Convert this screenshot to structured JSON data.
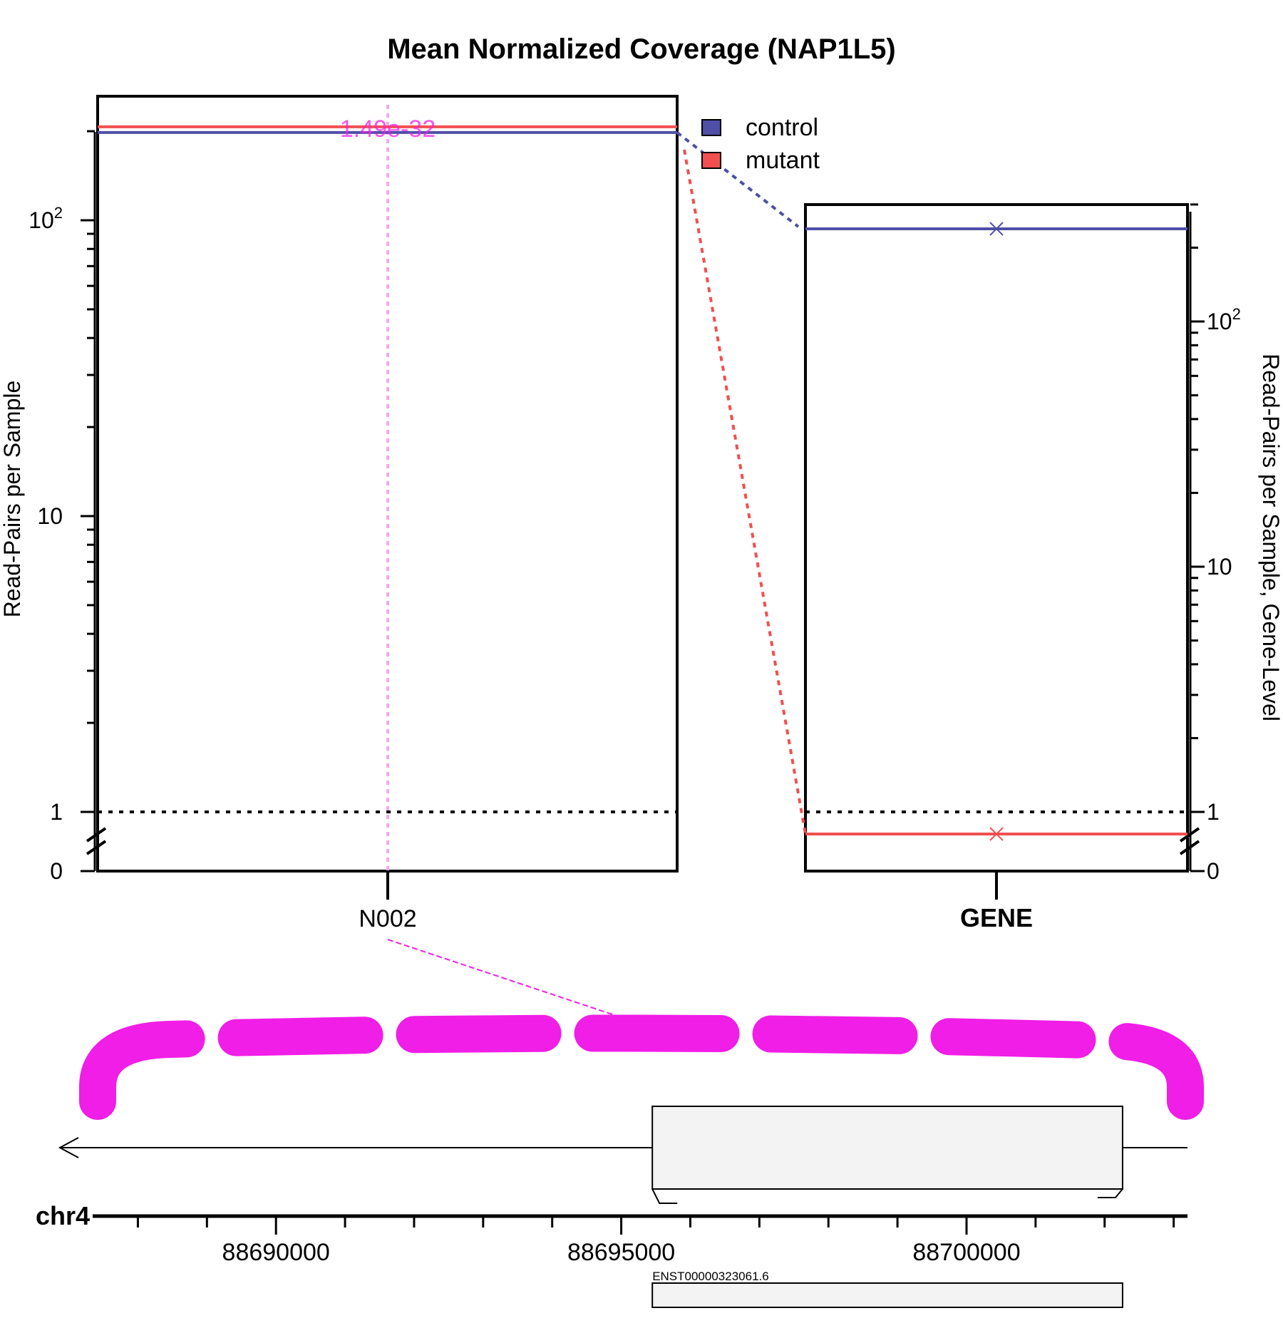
{
  "chart_data": {
    "title": "Mean Normalized Coverage (NAP1L5)",
    "type": "line",
    "colors": {
      "control": "#4f4fa7",
      "mutant": "#f24f4f",
      "highlight": "#f01ee6",
      "highlight_light": "#f5a8f1"
    },
    "legend": {
      "placement": "top-right",
      "entries": [
        {
          "name": "control"
        },
        {
          "name": "mutant"
        }
      ]
    },
    "left_panel": {
      "ylabel": "Read-Pairs per Sample",
      "yscale": "log",
      "ticks": [
        {
          "value": 0,
          "label": "0"
        },
        {
          "value": 1,
          "label": "1"
        },
        {
          "value": 10,
          "label": "10"
        },
        {
          "value": 100,
          "label": "10",
          "sup": "2"
        }
      ],
      "minor_ticks": [
        2,
        3,
        4,
        5,
        6,
        7,
        8,
        9,
        20,
        30,
        40,
        50,
        60,
        70,
        80,
        90,
        200
      ],
      "categories": [
        {
          "label": "N002"
        }
      ],
      "series": [
        {
          "name": "control",
          "value": 198
        },
        {
          "name": "mutant",
          "value": 207
        }
      ],
      "reference_line": 1,
      "annotation": {
        "text": "1.49e-32"
      }
    },
    "right_panel": {
      "ylabel": "Read-Pairs per Sample, Gene-Level",
      "yscale": "log",
      "ticks": [
        {
          "value": 0,
          "label": "0"
        },
        {
          "value": 1,
          "label": "1"
        },
        {
          "value": 10,
          "label": "10"
        },
        {
          "value": 100,
          "label": "10",
          "sup": "2"
        }
      ],
      "minor_ticks": [
        2,
        3,
        4,
        5,
        6,
        7,
        8,
        9,
        20,
        30,
        40,
        50,
        60,
        70,
        80,
        90,
        200,
        300
      ],
      "categories": [
        {
          "label": "GENE"
        }
      ],
      "series": [
        {
          "name": "control",
          "value": 316
        },
        {
          "name": "mutant",
          "value": 0.82
        }
      ],
      "reference_line": 1
    },
    "gene_track": {
      "chromosome": "chr4",
      "xlim": [
        88687500,
        88703200
      ],
      "tick_labels": [
        {
          "value": 88690000,
          "label": "88690000"
        },
        {
          "value": 88695000,
          "label": "88695000"
        },
        {
          "value": 88700000,
          "label": "88700000"
        }
      ],
      "strand": "-",
      "exon": [
        88695450,
        88702260
      ],
      "transcript": {
        "label": "ENST00000323061.6"
      }
    }
  }
}
